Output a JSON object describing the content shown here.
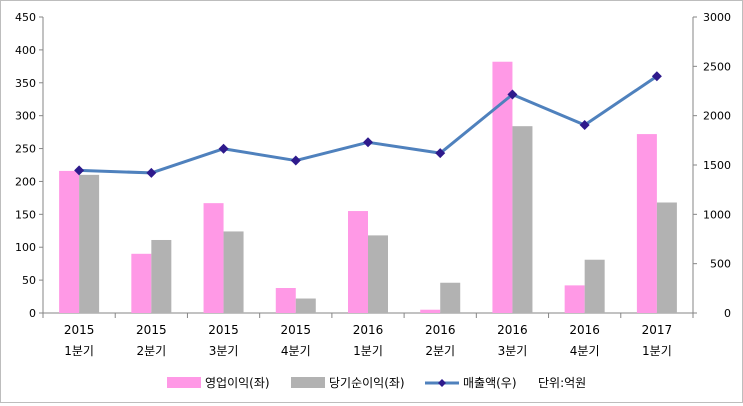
{
  "chart_data": {
    "type": "bar",
    "x_labels": [
      [
        "2015",
        "1분기"
      ],
      [
        "2015",
        "2분기"
      ],
      [
        "2015",
        "3분기"
      ],
      [
        "2015",
        "4분기"
      ],
      [
        "2016",
        "1분기"
      ],
      [
        "2016",
        "2분기"
      ],
      [
        "2016",
        "3분기"
      ],
      [
        "2016",
        "4분기"
      ],
      [
        "2017",
        "1분기"
      ]
    ],
    "y_left": {
      "min": 0,
      "max": 450,
      "ticks": [
        0,
        50,
        100,
        150,
        200,
        250,
        300,
        350,
        400,
        450
      ]
    },
    "y_right": {
      "min": 0,
      "max": 3000,
      "ticks": [
        0,
        500,
        1000,
        1500,
        2000,
        2500,
        3000
      ]
    },
    "series": [
      {
        "name": "영업이익(좌)",
        "kind": "bar",
        "axis": "left",
        "color": "#ff99e6",
        "values": [
          216,
          90,
          167,
          38,
          155,
          5,
          382,
          42,
          272
        ]
      },
      {
        "name": "당기순이익(좌)",
        "kind": "bar",
        "axis": "left",
        "color": "#b2b2b2",
        "values": [
          210,
          111,
          124,
          22,
          118,
          46,
          284,
          81,
          168
        ]
      },
      {
        "name": "매출액(우)",
        "kind": "line",
        "axis": "right",
        "color": "#4f81bd",
        "marker_color": "#2e1a8c",
        "values": [
          1445,
          1420,
          1665,
          1545,
          1730,
          1620,
          2215,
          1905,
          2400
        ]
      }
    ],
    "unit_note": "단위:억원",
    "grid": false,
    "legend_position": "bottom"
  }
}
